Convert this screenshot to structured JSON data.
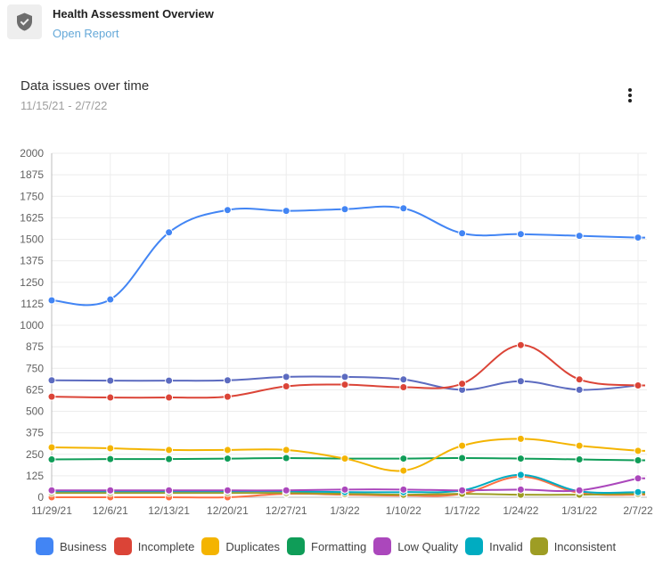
{
  "header": {
    "icon": "shield-check-icon",
    "title": "Health Assessment Overview",
    "link_label": "Open Report"
  },
  "card": {
    "title": "Data issues over time",
    "subtitle": "11/15/21 - 2/7/22",
    "menu_icon": "more-vert-icon"
  },
  "chart_data": {
    "type": "line",
    "x": [
      "11/29/21",
      "12/6/21",
      "12/13/21",
      "12/20/21",
      "12/27/21",
      "1/3/22",
      "1/10/22",
      "1/17/22",
      "1/24/22",
      "1/31/22",
      "2/7/22"
    ],
    "y_ticks": [
      0,
      125,
      250,
      375,
      500,
      625,
      750,
      875,
      1000,
      1125,
      1250,
      1375,
      1500,
      1625,
      1750,
      1875,
      2000
    ],
    "ylim": [
      0,
      2000
    ],
    "grid": true,
    "legend_position": "bottom",
    "series": [
      {
        "name": "Business",
        "color": "#4285f4",
        "values": [
          1145,
          1150,
          1540,
          1670,
          1665,
          1675,
          1680,
          1535,
          1530,
          1520,
          1510
        ]
      },
      {
        "name": "Incomplete",
        "color": "#db4437",
        "values": [
          585,
          580,
          580,
          585,
          645,
          655,
          640,
          660,
          885,
          685,
          650
        ]
      },
      {
        "name": "Duplicates",
        "color": "#f4b400",
        "values": [
          290,
          285,
          275,
          275,
          275,
          225,
          155,
          300,
          340,
          300,
          270
        ]
      },
      {
        "name": "Formatting",
        "color": "#0f9d58",
        "values": [
          220,
          222,
          222,
          225,
          228,
          225,
          225,
          228,
          225,
          220,
          215
        ]
      },
      {
        "name": "Low Quality",
        "color": "#ab47bc",
        "values": [
          40,
          40,
          40,
          40,
          40,
          45,
          45,
          40,
          45,
          40,
          110
        ]
      },
      {
        "name": "Invalid",
        "color": "#00acc1",
        "values": [
          35,
          35,
          35,
          35,
          35,
          30,
          30,
          40,
          130,
          35,
          30
        ]
      },
      {
        "name": "Inconsistent",
        "color": "#9e9d24",
        "values": [
          25,
          25,
          25,
          25,
          25,
          20,
          15,
          20,
          15,
          15,
          20
        ]
      },
      {
        "name": "",
        "color": "#5c6bc0",
        "values": [
          680,
          678,
          678,
          680,
          700,
          700,
          685,
          625,
          675,
          625,
          650
        ]
      },
      {
        "name": "",
        "color": "#ff7043",
        "values": [
          0,
          0,
          0,
          0,
          20,
          15,
          10,
          20,
          120,
          25,
          15
        ]
      }
    ]
  }
}
